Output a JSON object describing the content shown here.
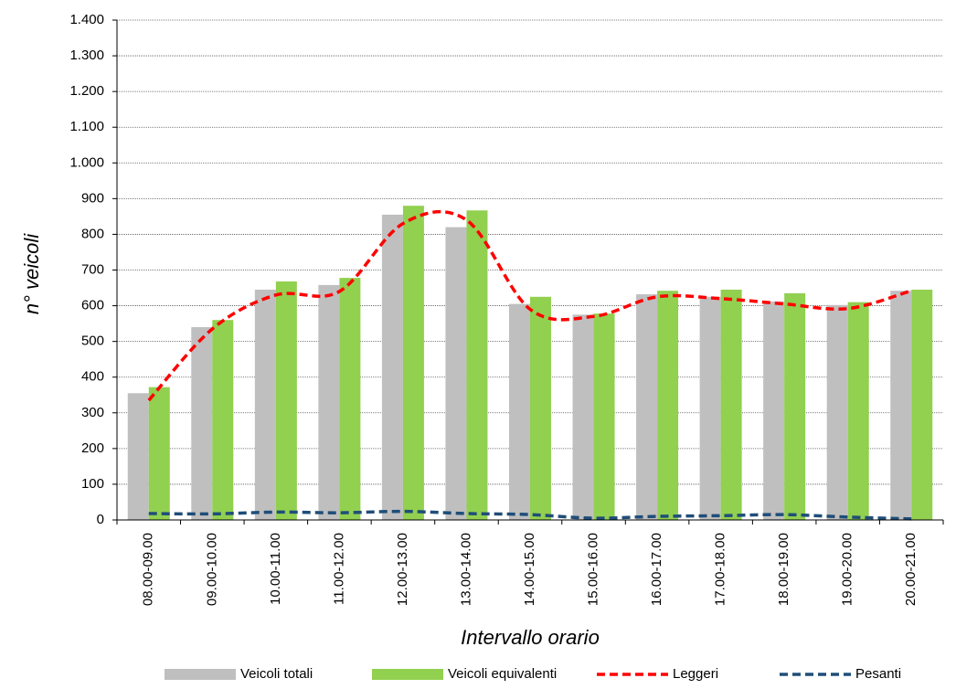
{
  "chart_data": {
    "type": "bar-line",
    "x_label": "Intervallo orario",
    "y_label": "n° veicoli",
    "categories": [
      "08.00-09.00",
      "09.00-10.00",
      "10.00-11.00",
      "11.00-12.00",
      "12.00-13.00",
      "13.00-14.00",
      "14.00-15.00",
      "15.00-16.00",
      "16.00-17.00",
      "17.00-18.00",
      "18.00-19.00",
      "19.00-20.00",
      "20.00-21.00"
    ],
    "series": [
      {
        "name": "Veicoli totali",
        "kind": "bar",
        "color": "#bfbfbf",
        "values": [
          355,
          540,
          645,
          658,
          855,
          820,
          605,
          575,
          632,
          625,
          612,
          602,
          642
        ]
      },
      {
        "name": "Veicoli equivalenti",
        "kind": "bar",
        "color": "#92d050",
        "values": [
          372,
          560,
          668,
          678,
          880,
          867,
          625,
          578,
          642,
          645,
          635,
          610,
          645
        ]
      },
      {
        "name": "Leggeri",
        "kind": "line",
        "color": "#ff0000",
        "values": [
          335,
          535,
          630,
          640,
          830,
          840,
          590,
          570,
          625,
          620,
          605,
          592,
          642
        ]
      },
      {
        "name": "Pesanti",
        "kind": "line",
        "color": "#1f4e79",
        "values": [
          18,
          17,
          22,
          20,
          24,
          18,
          15,
          5,
          10,
          12,
          15,
          8,
          3
        ]
      }
    ],
    "ylim": [
      0,
      1400
    ],
    "yticks": [
      0,
      100,
      200,
      300,
      400,
      500,
      600,
      700,
      800,
      900,
      {
        "value": 1000,
        "label": "1.000"
      },
      {
        "value": 1100,
        "label": "1.100"
      },
      {
        "value": 1200,
        "label": "1.200"
      },
      {
        "value": 1300,
        "label": "1.300"
      },
      {
        "value": 1400,
        "label": "1.400"
      }
    ],
    "grid": true,
    "legend": "bottom"
  }
}
